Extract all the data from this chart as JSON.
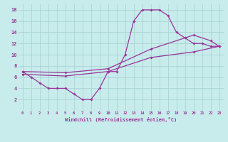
{
  "title": "",
  "xlabel": "Windchill (Refroidissement éolien,°C)",
  "ylabel": "",
  "background_color": "#c8ecec",
  "grid_color": "#aad4d4",
  "line_color": "#993399",
  "xlim": [
    -0.5,
    23.5
  ],
  "ylim": [
    0,
    19
  ],
  "xticks": [
    0,
    1,
    2,
    3,
    4,
    5,
    6,
    7,
    8,
    9,
    10,
    11,
    12,
    13,
    14,
    15,
    16,
    17,
    18,
    19,
    20,
    21,
    22,
    23
  ],
  "yticks": [
    2,
    4,
    6,
    8,
    10,
    12,
    14,
    16,
    18
  ],
  "series1_x": [
    0,
    1,
    2,
    3,
    4,
    5,
    6,
    7,
    8,
    9,
    10,
    11,
    12,
    13,
    14,
    15,
    16,
    17,
    18,
    19,
    20,
    21,
    22,
    23
  ],
  "series1_y": [
    7,
    6,
    5,
    4,
    4,
    4,
    3,
    2,
    2,
    4,
    7,
    7,
    10,
    16,
    18,
    18,
    18,
    17,
    14,
    13,
    12,
    12,
    11.5,
    11.5
  ],
  "series2_x": [
    0,
    5,
    10,
    15,
    20,
    23
  ],
  "series2_y": [
    6.5,
    6.2,
    7.0,
    9.5,
    10.5,
    11.5
  ],
  "series3_x": [
    0,
    5,
    10,
    15,
    20,
    22,
    23
  ],
  "series3_y": [
    7.0,
    6.8,
    7.5,
    11.0,
    13.5,
    12.5,
    11.5
  ]
}
